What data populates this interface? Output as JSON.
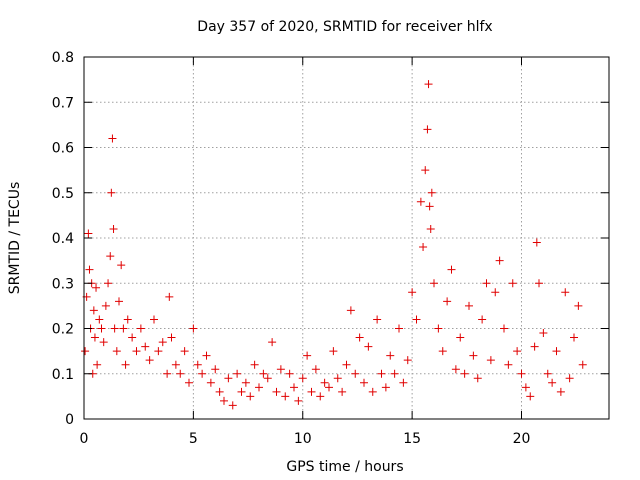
{
  "chart_data": {
    "type": "scatter",
    "title": "Day 357 of 2020, SRMTID for receiver hlfx",
    "xlabel": "GPS time / hours",
    "ylabel": "SRMTID / TECUs",
    "xlim": [
      0,
      24
    ],
    "ylim": [
      0,
      0.8
    ],
    "xticks": [
      0,
      5,
      10,
      15,
      20
    ],
    "xtick_labels": [
      "0",
      "5",
      "10",
      "15",
      "20"
    ],
    "yticks": [
      0,
      0.1,
      0.2,
      0.3,
      0.4,
      0.5,
      0.6,
      0.7,
      0.8
    ],
    "ytick_labels": [
      "0",
      "0.1",
      "0.2",
      "0.3",
      "0.4",
      "0.5",
      "0.6",
      "0.7",
      "0.8"
    ],
    "grid": true,
    "marker": "+",
    "color": "#e00000",
    "series": [
      {
        "name": "SRMTID",
        "x": [
          0.05,
          0.12,
          0.2,
          0.25,
          0.3,
          0.35,
          0.4,
          0.45,
          0.5,
          0.55,
          0.6,
          0.7,
          0.8,
          0.9,
          1.0,
          1.1,
          1.2,
          1.25,
          1.3,
          1.35,
          1.4,
          1.5,
          1.6,
          1.7,
          1.8,
          1.9,
          2.0,
          2.2,
          2.4,
          2.6,
          2.8,
          3.0,
          3.2,
          3.4,
          3.6,
          3.8,
          3.9,
          4.0,
          4.2,
          4.4,
          4.6,
          4.8,
          5.0,
          5.2,
          5.4,
          5.6,
          5.8,
          6.0,
          6.2,
          6.4,
          6.6,
          6.8,
          7.0,
          7.2,
          7.4,
          7.6,
          7.8,
          8.0,
          8.2,
          8.4,
          8.6,
          8.8,
          9.0,
          9.2,
          9.4,
          9.6,
          9.8,
          10.0,
          10.2,
          10.4,
          10.6,
          10.8,
          11.0,
          11.2,
          11.4,
          11.6,
          11.8,
          12.0,
          12.2,
          12.4,
          12.6,
          12.8,
          13.0,
          13.2,
          13.4,
          13.6,
          13.8,
          14.0,
          14.2,
          14.4,
          14.6,
          14.8,
          15.0,
          15.2,
          15.4,
          15.5,
          15.6,
          15.7,
          15.75,
          15.8,
          15.85,
          15.9,
          16.0,
          16.2,
          16.4,
          16.6,
          16.8,
          17.0,
          17.2,
          17.4,
          17.6,
          17.8,
          18.0,
          18.2,
          18.4,
          18.6,
          18.8,
          19.0,
          19.2,
          19.4,
          19.6,
          19.8,
          20.0,
          20.2,
          20.4,
          20.6,
          20.7,
          20.8,
          21.0,
          21.2,
          21.4,
          21.6,
          21.8,
          22.0,
          22.2,
          22.4,
          22.6,
          22.8
        ],
        "y": [
          0.15,
          0.27,
          0.41,
          0.33,
          0.2,
          0.3,
          0.1,
          0.24,
          0.18,
          0.29,
          0.12,
          0.22,
          0.2,
          0.17,
          0.25,
          0.3,
          0.36,
          0.5,
          0.62,
          0.42,
          0.2,
          0.15,
          0.26,
          0.34,
          0.2,
          0.12,
          0.22,
          0.18,
          0.15,
          0.2,
          0.16,
          0.13,
          0.22,
          0.15,
          0.17,
          0.1,
          0.27,
          0.18,
          0.12,
          0.1,
          0.15,
          0.08,
          0.2,
          0.12,
          0.1,
          0.14,
          0.08,
          0.11,
          0.06,
          0.04,
          0.09,
          0.03,
          0.1,
          0.06,
          0.08,
          0.05,
          0.12,
          0.07,
          0.1,
          0.09,
          0.17,
          0.06,
          0.11,
          0.05,
          0.1,
          0.07,
          0.04,
          0.09,
          0.14,
          0.06,
          0.11,
          0.05,
          0.08,
          0.07,
          0.15,
          0.09,
          0.06,
          0.12,
          0.24,
          0.1,
          0.18,
          0.08,
          0.16,
          0.06,
          0.22,
          0.1,
          0.07,
          0.14,
          0.1,
          0.2,
          0.08,
          0.13,
          0.28,
          0.22,
          0.48,
          0.38,
          0.55,
          0.64,
          0.74,
          0.47,
          0.42,
          0.5,
          0.3,
          0.2,
          0.15,
          0.26,
          0.33,
          0.11,
          0.18,
          0.1,
          0.25,
          0.14,
          0.09,
          0.22,
          0.3,
          0.13,
          0.28,
          0.35,
          0.2,
          0.12,
          0.3,
          0.15,
          0.1,
          0.07,
          0.05,
          0.16,
          0.39,
          0.3,
          0.19,
          0.1,
          0.08,
          0.15,
          0.06,
          0.28,
          0.09,
          0.18,
          0.25,
          0.12
        ]
      }
    ]
  }
}
